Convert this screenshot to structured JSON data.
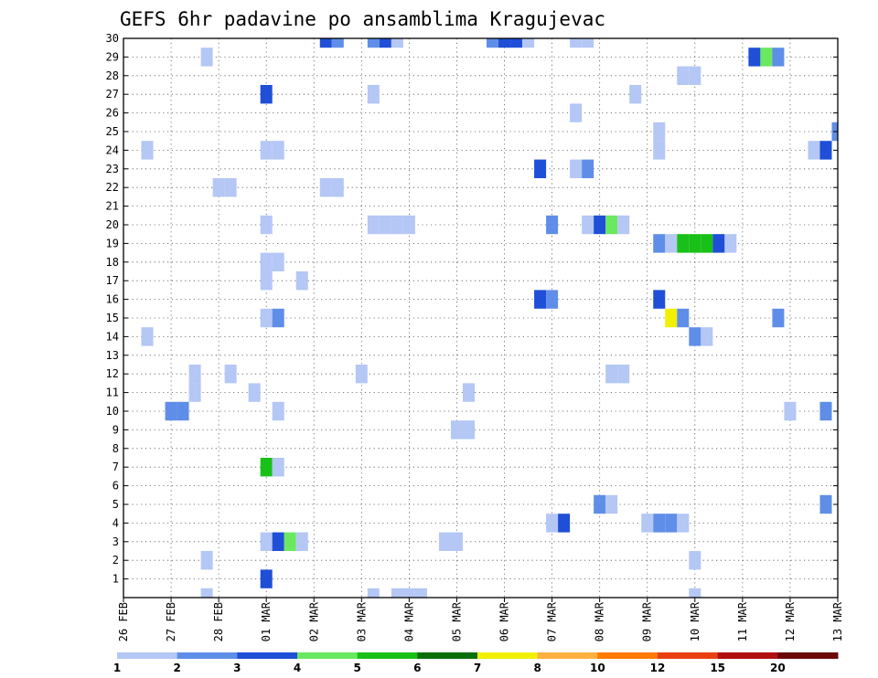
{
  "chart_data": {
    "type": "heatmap",
    "title": "GEFS 6hr padavine po ansamblima Kragujevac",
    "x_ticks": [
      "26 FEB",
      "27 FEB",
      "28 FEB",
      "01 MAR",
      "02 MAR",
      "03 MAR",
      "04 MAR",
      "05 MAR",
      "06 MAR",
      "07 MAR",
      "08 MAR",
      "09 MAR",
      "10 MAR",
      "11 MAR",
      "12 MAR",
      "13 MAR"
    ],
    "y_ticks": [
      "1",
      "2",
      "3",
      "4",
      "5",
      "6",
      "7",
      "8",
      "9",
      "10",
      "11",
      "12",
      "13",
      "14",
      "15",
      "16",
      "17",
      "18",
      "19",
      "20",
      "21",
      "22",
      "23",
      "24",
      "25",
      "26",
      "27",
      "28",
      "29",
      "30"
    ],
    "y_range": [
      0,
      30
    ],
    "steps_per_day": 4,
    "grid": "dotted",
    "colorbar": {
      "labels": [
        "1",
        "2",
        "3",
        "4",
        "5",
        "6",
        "7",
        "8",
        "10",
        "12",
        "15",
        "20"
      ],
      "colors": [
        "#b4c7f5",
        "#5f8ee8",
        "#1f4fd6",
        "#6ae860",
        "#18c018",
        "#0a6e0a",
        "#f0f000",
        "#ffb040",
        "#ff7a00",
        "#e84010",
        "#b01010",
        "#6a0808"
      ]
    },
    "cells": [
      [
        0.5,
        24,
        1
      ],
      [
        0.5,
        14,
        1
      ],
      [
        1.0,
        10,
        2
      ],
      [
        1.25,
        10,
        2
      ],
      [
        1.5,
        12,
        1
      ],
      [
        1.5,
        11,
        1
      ],
      [
        1.75,
        29,
        1
      ],
      [
        1.75,
        2,
        1
      ],
      [
        1.75,
        0,
        1
      ],
      [
        2.0,
        22,
        1
      ],
      [
        2.25,
        22,
        1
      ],
      [
        2.25,
        12,
        1
      ],
      [
        2.75,
        11,
        1
      ],
      [
        3.0,
        27,
        3
      ],
      [
        3.0,
        24,
        1
      ],
      [
        3.0,
        20,
        1
      ],
      [
        3.0,
        18,
        1
      ],
      [
        3.0,
        17,
        1
      ],
      [
        3.0,
        15,
        1
      ],
      [
        3.0,
        7,
        5
      ],
      [
        3.0,
        3,
        1
      ],
      [
        3.0,
        1,
        3
      ],
      [
        3.25,
        24,
        1
      ],
      [
        3.25,
        18,
        1
      ],
      [
        3.25,
        15,
        2
      ],
      [
        3.25,
        10,
        1
      ],
      [
        3.25,
        7,
        1
      ],
      [
        3.25,
        3,
        3
      ],
      [
        3.5,
        3,
        4
      ],
      [
        3.75,
        17,
        1
      ],
      [
        3.75,
        3,
        1
      ],
      [
        4.25,
        30,
        3
      ],
      [
        4.5,
        30,
        2
      ],
      [
        4.25,
        22,
        1
      ],
      [
        4.5,
        22,
        1
      ],
      [
        5.0,
        12,
        1
      ],
      [
        5.25,
        30,
        2
      ],
      [
        5.25,
        27,
        1
      ],
      [
        5.25,
        20,
        1
      ],
      [
        5.25,
        0,
        1
      ],
      [
        5.5,
        30,
        3
      ],
      [
        5.5,
        20,
        1
      ],
      [
        5.75,
        30,
        1
      ],
      [
        5.75,
        20,
        1
      ],
      [
        5.75,
        0,
        1
      ],
      [
        6.0,
        20,
        1
      ],
      [
        6.0,
        0,
        1
      ],
      [
        6.25,
        0,
        1
      ],
      [
        6.75,
        3,
        1
      ],
      [
        7.0,
        3,
        1
      ],
      [
        7.0,
        9,
        1
      ],
      [
        7.25,
        9,
        1
      ],
      [
        7.25,
        11,
        1
      ],
      [
        7.75,
        30,
        2
      ],
      [
        8.0,
        30,
        3
      ],
      [
        8.25,
        30,
        3
      ],
      [
        8.5,
        30,
        1
      ],
      [
        8.75,
        23,
        3
      ],
      [
        8.75,
        16,
        3
      ],
      [
        9.0,
        20,
        2
      ],
      [
        9.0,
        16,
        2
      ],
      [
        9.0,
        4,
        1
      ],
      [
        9.25,
        4,
        3
      ],
      [
        9.5,
        30,
        1
      ],
      [
        9.75,
        30,
        1
      ],
      [
        9.5,
        26,
        1
      ],
      [
        9.5,
        23,
        1
      ],
      [
        9.75,
        23,
        2
      ],
      [
        9.75,
        20,
        1
      ],
      [
        10.0,
        20,
        3
      ],
      [
        10.0,
        5,
        2
      ],
      [
        10.25,
        20,
        4
      ],
      [
        10.25,
        12,
        1
      ],
      [
        10.25,
        5,
        1
      ],
      [
        10.5,
        20,
        1
      ],
      [
        10.5,
        12,
        1
      ],
      [
        10.75,
        27,
        1
      ],
      [
        11.0,
        4,
        1
      ],
      [
        11.25,
        25,
        1
      ],
      [
        11.25,
        24,
        1
      ],
      [
        11.25,
        19,
        2
      ],
      [
        11.25,
        16,
        3
      ],
      [
        11.25,
        4,
        2
      ],
      [
        11.5,
        19,
        1
      ],
      [
        11.5,
        15,
        7
      ],
      [
        11.5,
        4,
        2
      ],
      [
        11.75,
        19,
        5
      ],
      [
        11.75,
        15,
        2
      ],
      [
        11.75,
        28,
        1
      ],
      [
        11.75,
        4,
        1
      ],
      [
        12.0,
        19,
        5
      ],
      [
        12.0,
        28,
        1
      ],
      [
        12.0,
        14,
        2
      ],
      [
        12.0,
        2,
        1
      ],
      [
        12.0,
        0,
        1
      ],
      [
        12.25,
        19,
        5
      ],
      [
        12.25,
        14,
        1
      ],
      [
        12.5,
        19,
        3
      ],
      [
        12.75,
        19,
        1
      ],
      [
        13.25,
        29,
        3
      ],
      [
        13.5,
        29,
        4
      ],
      [
        13.75,
        29,
        2
      ],
      [
        13.75,
        15,
        2
      ],
      [
        14.0,
        10,
        1
      ],
      [
        14.5,
        24,
        1
      ],
      [
        14.75,
        24,
        3
      ],
      [
        14.75,
        10,
        2
      ],
      [
        14.75,
        5,
        2
      ],
      [
        15.0,
        25,
        2
      ]
    ]
  }
}
